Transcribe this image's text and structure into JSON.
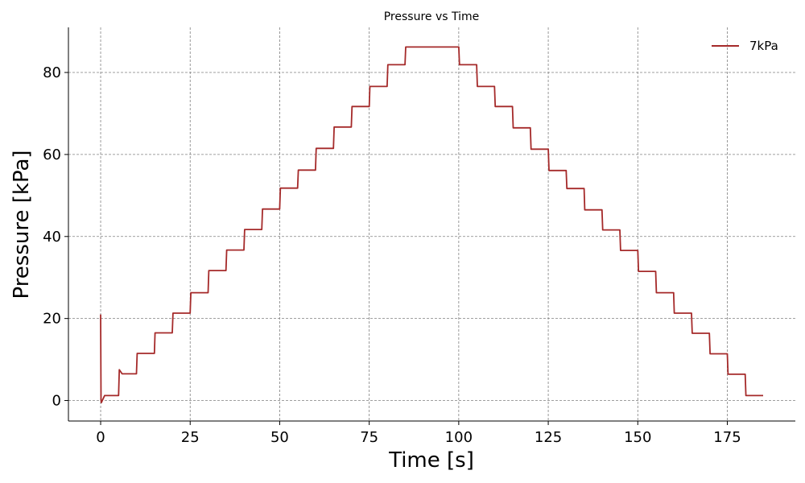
{
  "chart_data": {
    "type": "line",
    "title": "Pressure vs Time",
    "xlabel": "Time [s]",
    "ylabel": "Pressure [kPa]",
    "xlim": [
      -9,
      194
    ],
    "ylim": [
      -5,
      91
    ],
    "xticks": [
      0,
      25,
      50,
      75,
      100,
      125,
      150,
      175
    ],
    "yticks": [
      0,
      20,
      40,
      60,
      80
    ],
    "grid": true,
    "legend": {
      "position": "top-right"
    },
    "series": [
      {
        "name": "7kPa",
        "color": "#a52a2a",
        "x": [
          0,
          0.1,
          0.2,
          1,
          1.1,
          5,
          5.2,
          6,
          10,
          10.2,
          15,
          15.2,
          20,
          20.2,
          25,
          25.2,
          30,
          30.2,
          35,
          35.2,
          40,
          40.2,
          45,
          45.2,
          50,
          50.2,
          55,
          55.2,
          60,
          60.2,
          65,
          65.2,
          70,
          70.2,
          75,
          75.2,
          80,
          80.2,
          85,
          85.2,
          100,
          100.2,
          105,
          105.2,
          110,
          110.2,
          115,
          115.2,
          120,
          120.2,
          125,
          125.2,
          130,
          130.2,
          135,
          135.2,
          140,
          140.2,
          145,
          145.2,
          150,
          150.2,
          155,
          155.2,
          160,
          160.2,
          165,
          165.2,
          170,
          170.2,
          175,
          175.2,
          180,
          180.2,
          185
        ],
        "y": [
          21,
          0,
          -0.5,
          1,
          1.2,
          1.2,
          7.5,
          6.5,
          6.5,
          11.5,
          11.5,
          16.5,
          16.5,
          21.3,
          21.3,
          26.3,
          26.3,
          31.7,
          31.7,
          36.7,
          36.7,
          41.7,
          41.7,
          46.7,
          46.7,
          51.8,
          51.8,
          56.2,
          56.2,
          61.5,
          61.5,
          66.7,
          66.7,
          71.7,
          71.7,
          76.6,
          76.6,
          81.9,
          81.9,
          86.2,
          86.2,
          81.9,
          81.9,
          76.6,
          76.6,
          71.7,
          71.7,
          66.5,
          66.5,
          61.3,
          61.3,
          56.1,
          56.1,
          51.7,
          51.7,
          46.5,
          46.5,
          41.6,
          41.6,
          36.6,
          36.6,
          31.5,
          31.5,
          26.3,
          26.3,
          21.3,
          21.3,
          16.4,
          16.4,
          11.4,
          11.4,
          6.4,
          6.4,
          1.2,
          1.2
        ]
      }
    ]
  }
}
